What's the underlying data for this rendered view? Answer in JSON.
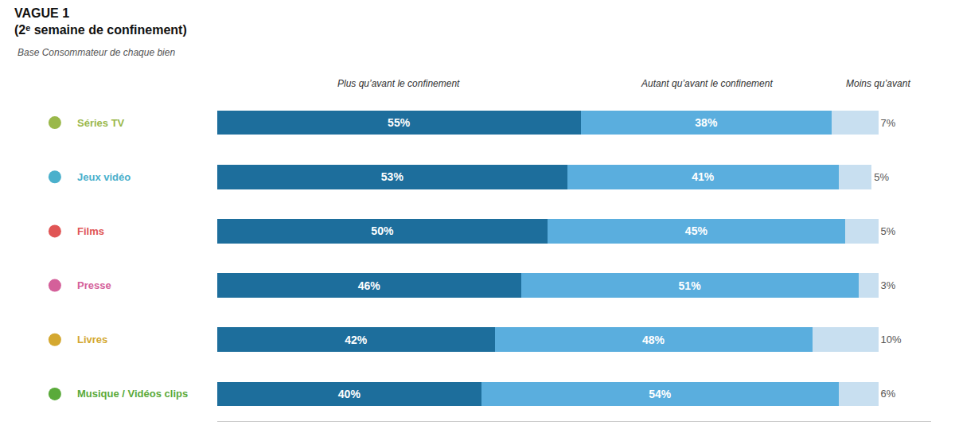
{
  "chart_data": {
    "type": "bar",
    "orientation": "horizontal",
    "stacked": true,
    "title": "VAGUE 1\n(2ᵉ semaine de confinement)",
    "subtitle": "Base Consommateur de chaque bien",
    "categories": [
      "Séries TV",
      "Jeux vidéo",
      "Films",
      "Presse",
      "Livres",
      "Musique / Vidéos clips"
    ],
    "colors": [
      "#9ab84a",
      "#4ab0cc",
      "#e05555",
      "#d4609a",
      "#d4a830",
      "#5aaa3a"
    ],
    "series": [
      {
        "name": "Plus qu’avant le confinement",
        "color": "#1d6e9c",
        "values": [
          55,
          53,
          50,
          46,
          42,
          40
        ],
        "value_labels": [
          "55%",
          "53%",
          "50%",
          "46%",
          "42%",
          "40%"
        ]
      },
      {
        "name": "Autant qu’avant le confinement",
        "color": "#5aaede",
        "values": [
          38,
          41,
          45,
          51,
          48,
          54
        ],
        "value_labels": [
          "38%",
          "41%",
          "45%",
          "51%",
          "48%",
          "54%"
        ]
      },
      {
        "name": "Moins qu’avant",
        "color": "#c8dff0",
        "values": [
          7,
          5,
          5,
          3,
          10,
          6
        ],
        "value_labels": [
          "7%",
          "5%",
          "5%",
          "3%",
          "10%",
          "6%"
        ]
      }
    ],
    "xlim": [
      0,
      108
    ],
    "data_labels": true,
    "tick_labels": "y"
  }
}
